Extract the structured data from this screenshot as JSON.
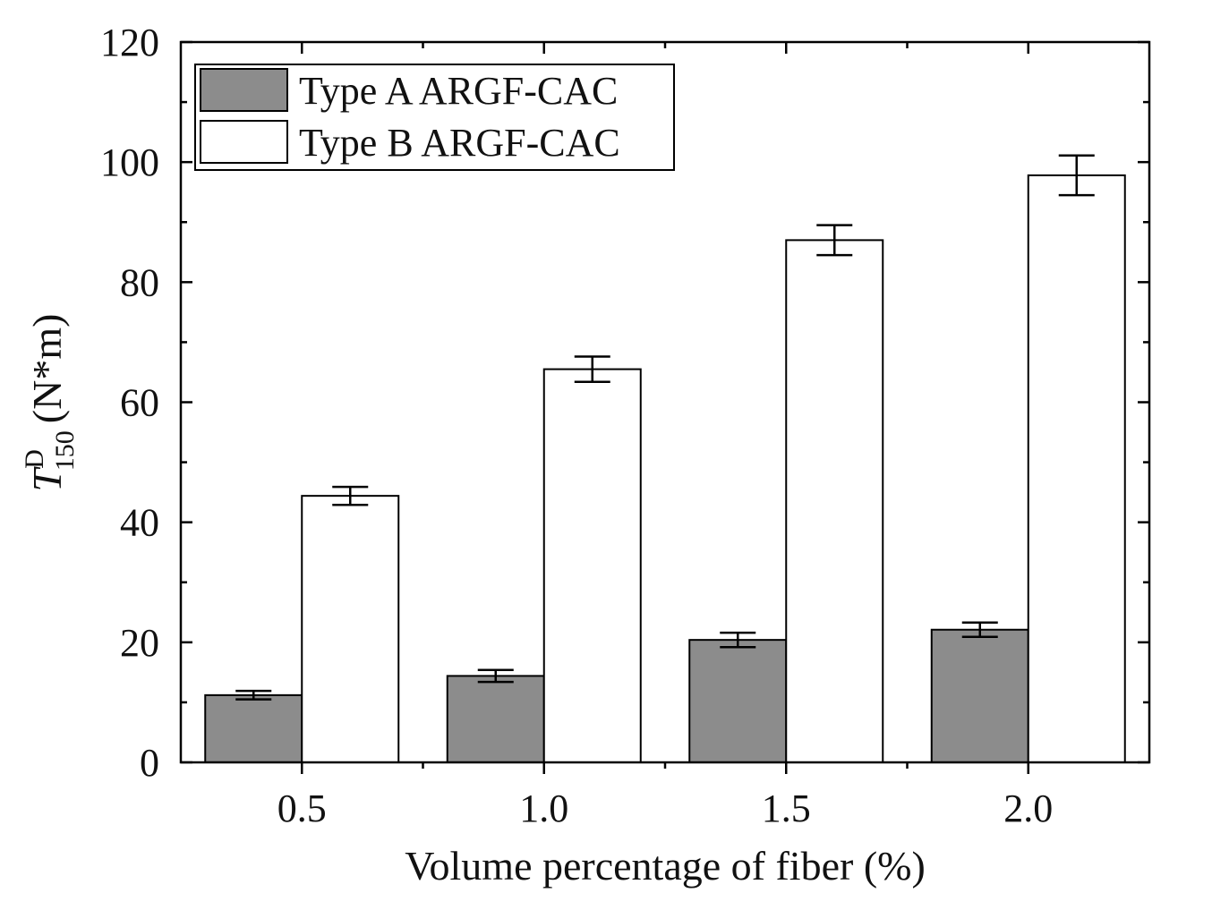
{
  "chart_data": {
    "type": "bar",
    "title": "",
    "xlabel": "Volume percentage of fiber (%)",
    "ylabel": {
      "symbol": "T",
      "superscript": "D",
      "subscript": "150",
      "unit": "(N*m)"
    },
    "categories": [
      "0.5",
      "1.0",
      "1.5",
      "2.0"
    ],
    "ylim": [
      0,
      120
    ],
    "yticks": [
      "0",
      "20",
      "40",
      "60",
      "80",
      "100",
      "120"
    ],
    "series": [
      {
        "name": "Type A ARGF-CAC",
        "color": "#8c8c8c",
        "values": [
          11.2,
          14.4,
          20.4,
          22.1
        ],
        "errors": [
          0.7,
          1.0,
          1.2,
          1.2
        ]
      },
      {
        "name": "Type B ARGF-CAC",
        "color": "#ffffff",
        "values": [
          44.4,
          65.5,
          87.0,
          97.8
        ],
        "errors": [
          1.5,
          2.1,
          2.5,
          3.3
        ]
      }
    ],
    "legend_position": "top-left",
    "grid": false
  }
}
